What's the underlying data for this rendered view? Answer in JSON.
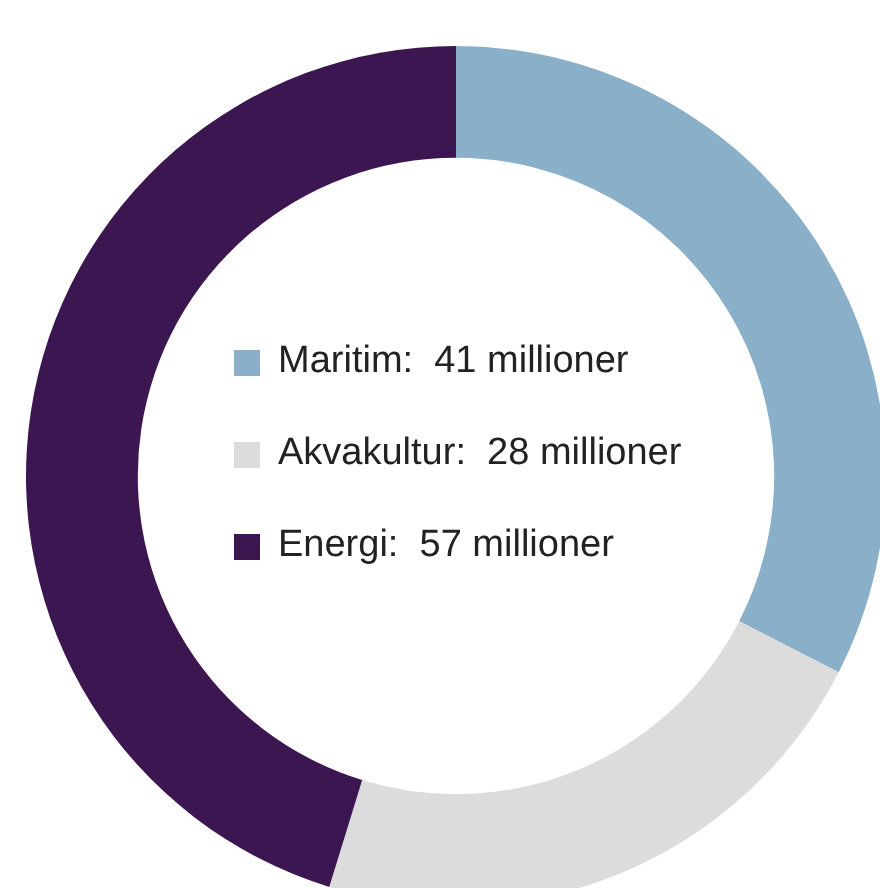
{
  "chart_data": {
    "type": "donut",
    "categories": [
      "Maritim",
      "Akvakultur",
      "Energi"
    ],
    "values": [
      41,
      28,
      57
    ],
    "value_labels": [
      "41 millioner",
      "28 millioner",
      "57 millioner"
    ],
    "colors": [
      "#8aafc8",
      "#dcdcdc",
      "#3b1650"
    ],
    "legend": "center"
  }
}
